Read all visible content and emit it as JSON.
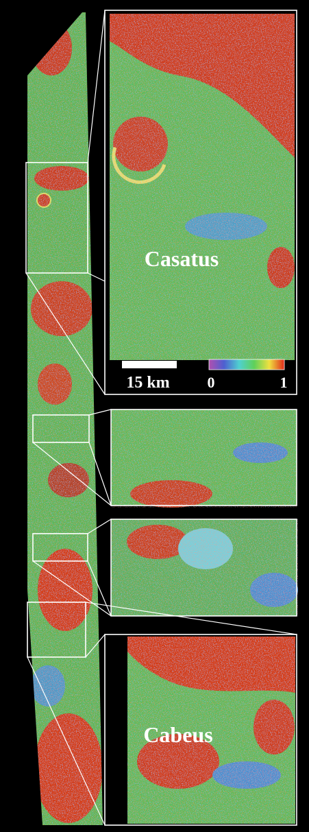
{
  "insets": [
    {
      "label": "Casatus"
    },
    {
      "label": "Cabeus"
    }
  ],
  "scale_bar": {
    "label": "15 km"
  },
  "colorbar": {
    "min_label": 0,
    "max_label": 1
  }
}
